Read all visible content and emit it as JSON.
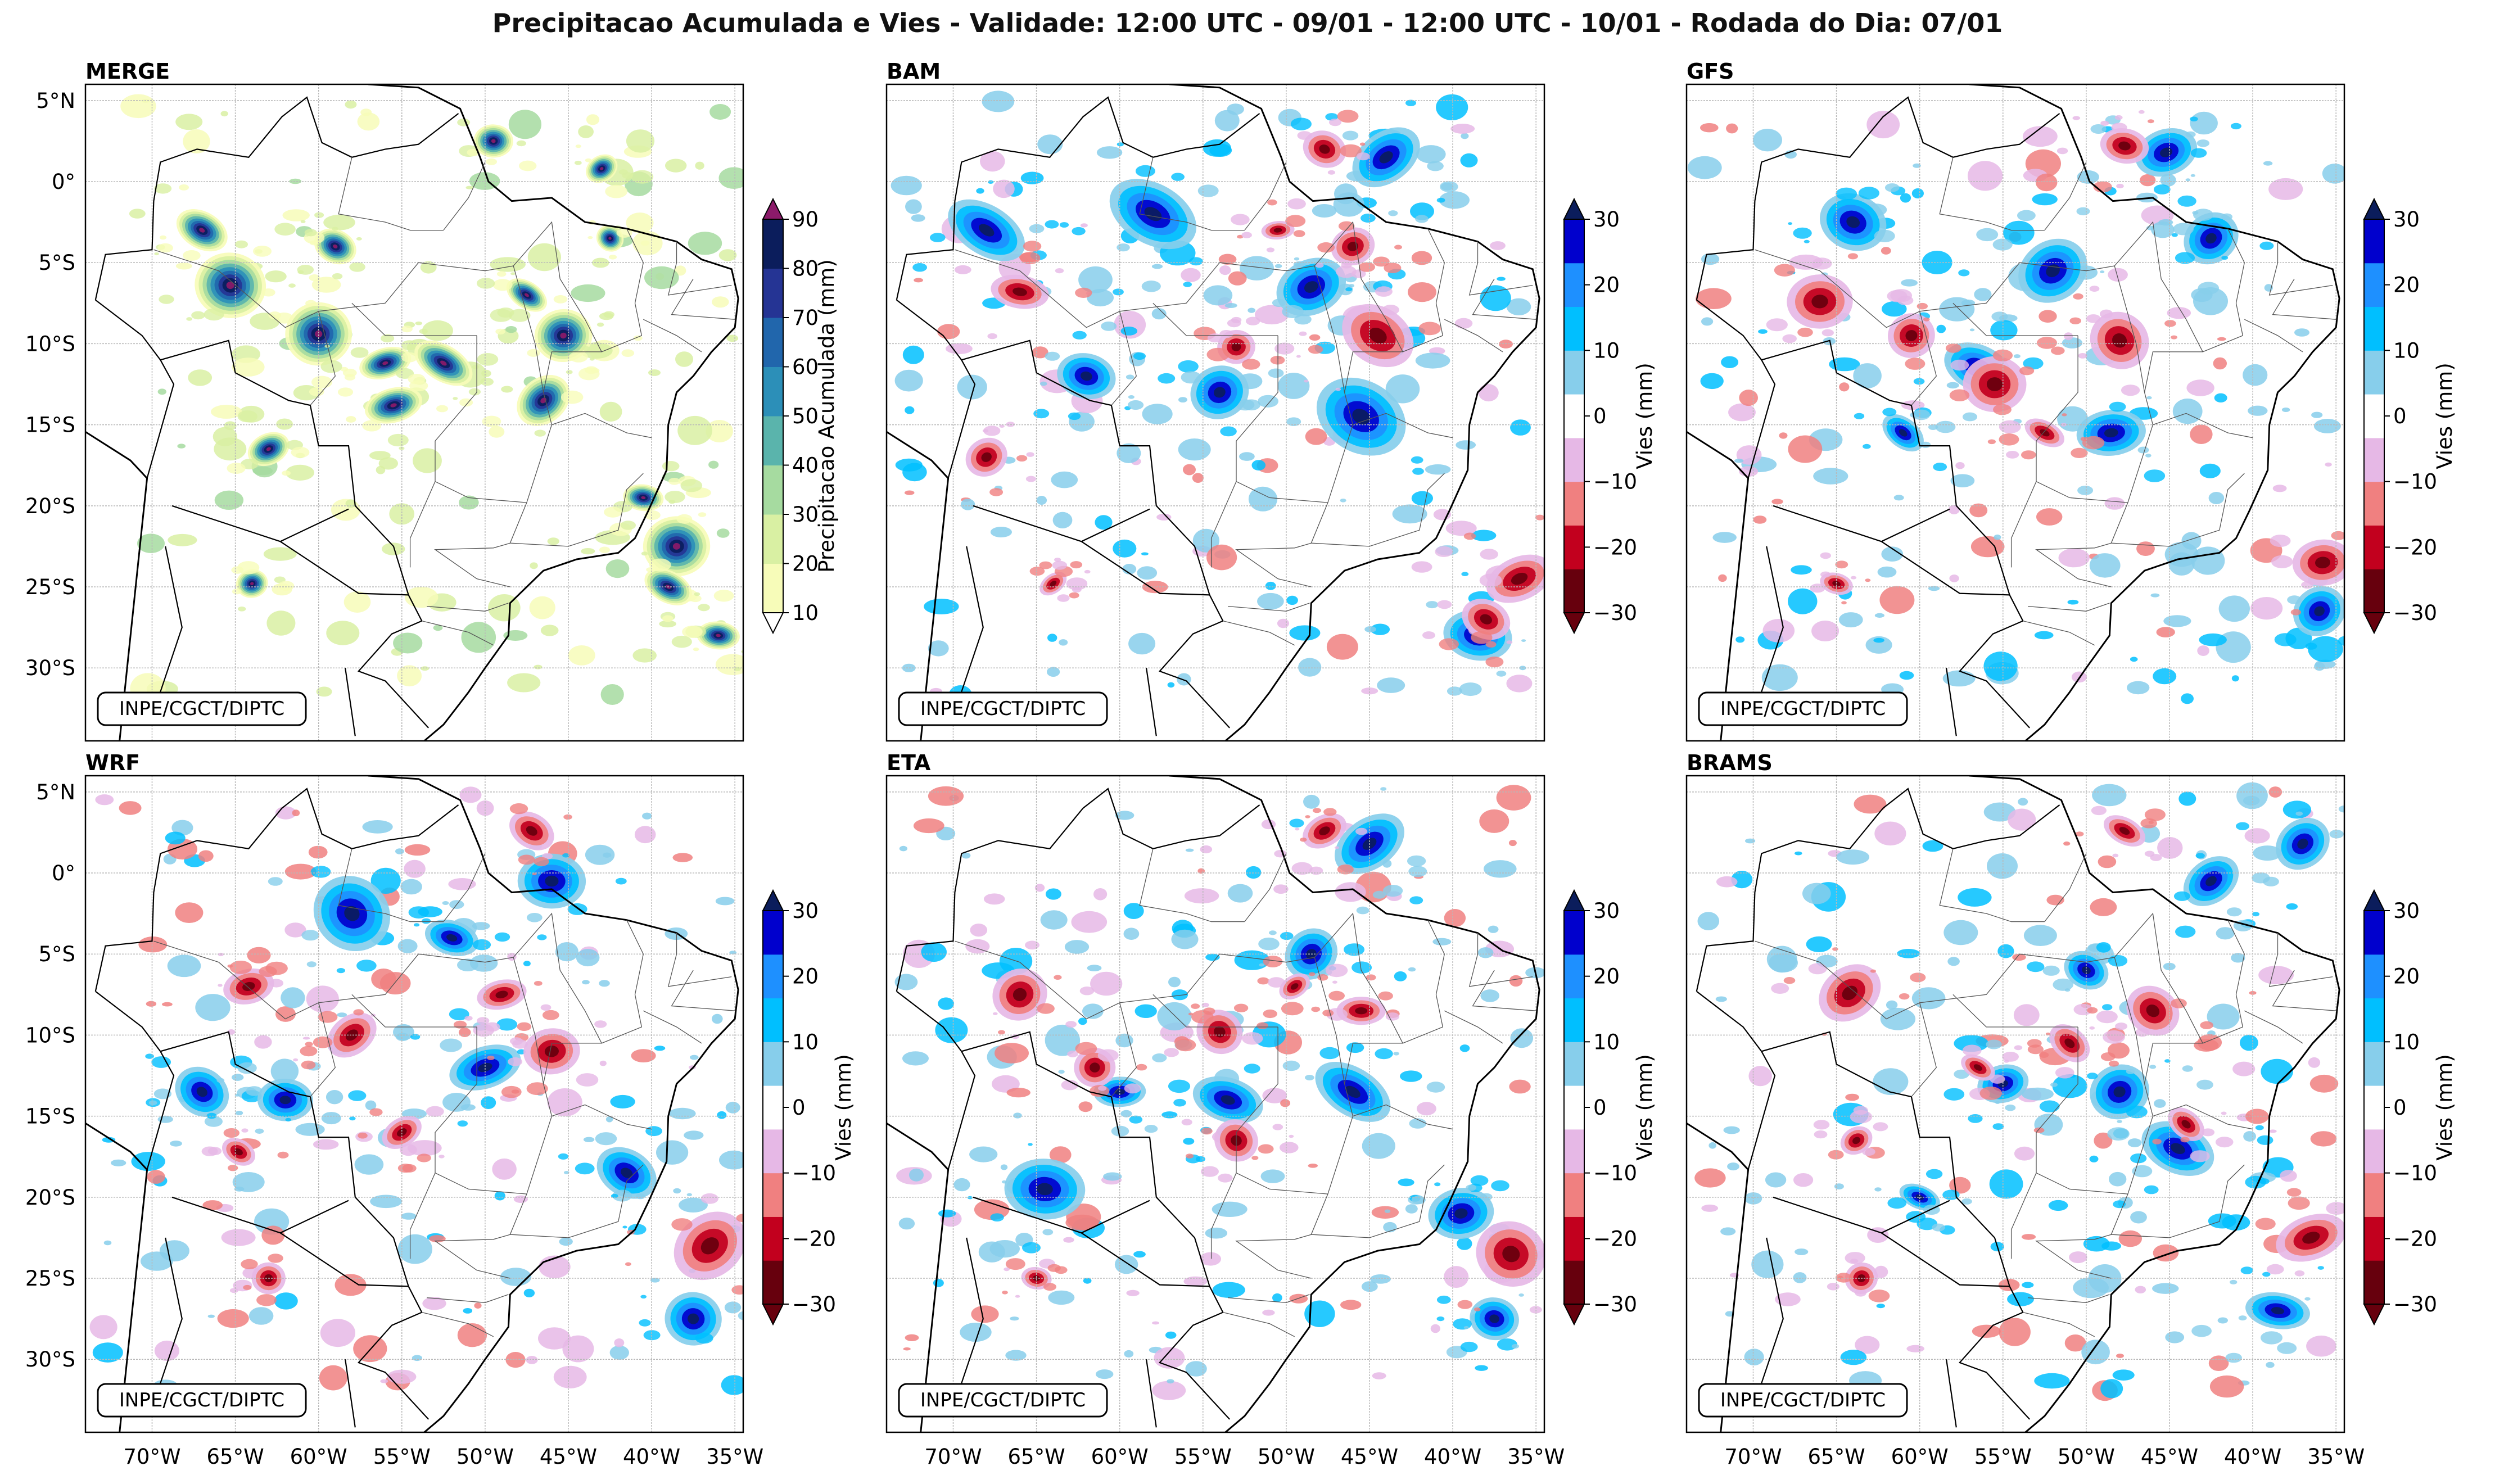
{
  "title": "Precipitacao Acumulada e Vies - Validade: 12:00 UTC - 09/01 - 12:00 UTC - 10/01 - Rodada do Dia: 07/01",
  "watermark": "INPE/CGCT/DIPTC",
  "lat_labels": [
    "5°N",
    "0°",
    "5°S",
    "10°S",
    "15°S",
    "20°S",
    "25°S",
    "30°S"
  ],
  "lon_labels": [
    "70°W",
    "65°W",
    "60°W",
    "55°W",
    "50°W",
    "45°W",
    "40°W",
    "35°W"
  ],
  "panels": [
    {
      "name": "MERGE",
      "colorbar_label": "Precipitacao Acumulada (mm)",
      "ticks": [
        "10",
        "20",
        "30",
        "40",
        "50",
        "60",
        "70",
        "80",
        "90"
      ],
      "kind": "precip"
    },
    {
      "name": "BAM",
      "colorbar_label": "Vies (mm)",
      "ticks": [
        "−30",
        "−20",
        "−10",
        "0",
        "10",
        "20",
        "30"
      ],
      "kind": "bias"
    },
    {
      "name": "GFS",
      "colorbar_label": "Vies (mm)",
      "ticks": [
        "−30",
        "−20",
        "−10",
        "0",
        "10",
        "20",
        "30"
      ],
      "kind": "bias"
    },
    {
      "name": "WRF",
      "colorbar_label": "Vies (mm)",
      "ticks": [
        "−30",
        "−20",
        "−10",
        "0",
        "10",
        "20",
        "30"
      ],
      "kind": "bias"
    },
    {
      "name": "ETA",
      "colorbar_label": "Vies (mm)",
      "ticks": [
        "−30",
        "−20",
        "−10",
        "0",
        "10",
        "20",
        "30"
      ],
      "kind": "bias"
    },
    {
      "name": "BRAMS",
      "colorbar_label": "Vies (mm)",
      "ticks": [
        "−30",
        "−20",
        "−10",
        "0",
        "10",
        "20",
        "30"
      ],
      "kind": "bias"
    }
  ],
  "colors": {
    "precip": [
      "#f7fcb9",
      "#d9f0a3",
      "#a6dba0",
      "#5ab4ac",
      "#2c8fb8",
      "#2166ac",
      "#253494",
      "#0b1d5c"
    ],
    "precip_over": "#8c1a6a",
    "bias": [
      "#67000d",
      "#c2001e",
      "#f08080",
      "#e6b8e6",
      "#ffffff",
      "#87ceeb",
      "#00bfff",
      "#1e90ff",
      "#0000cd"
    ],
    "bias_under": "#67000d",
    "bias_over": "#0b1d5c"
  }
}
